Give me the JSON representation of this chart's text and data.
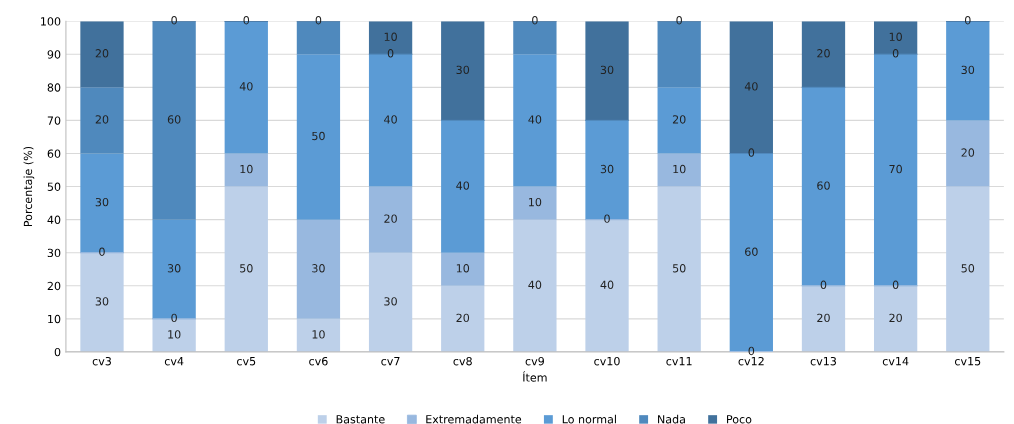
{
  "chart_data": {
    "type": "bar",
    "stacked": true,
    "xlabel": "Ítem",
    "ylabel": "Porcentaje (%)",
    "categories": [
      "cv3",
      "cv4",
      "cv5",
      "cv6",
      "cv7",
      "cv8",
      "cv9",
      "cv10",
      "cv11",
      "cv12",
      "cv13",
      "cv14",
      "cv15"
    ],
    "series": [
      {
        "name": "Bastante",
        "color": "#bdd0e9",
        "values": [
          30,
          10,
          50,
          10,
          30,
          20,
          40,
          40,
          50,
          0,
          20,
          20,
          50
        ],
        "value_labels": [
          "30",
          "10",
          "50",
          "10",
          "30",
          "20",
          "40",
          "40",
          "50",
          "0",
          "20",
          "20",
          "50"
        ]
      },
      {
        "name": "Extremadamente",
        "color": "#98b8df",
        "values": [
          0,
          0,
          10,
          30,
          20,
          10,
          10,
          0,
          10,
          0,
          0,
          0,
          20
        ],
        "value_labels": [
          "0",
          "0",
          "10",
          "30",
          "20",
          "10",
          "10",
          "0",
          "10",
          null,
          "0",
          "0",
          "20"
        ]
      },
      {
        "name": "Lo normal",
        "color": "#5b9bd5",
        "values": [
          30,
          30,
          40,
          50,
          40,
          40,
          40,
          30,
          20,
          60,
          60,
          70,
          30
        ],
        "value_labels": [
          "30",
          "30",
          "40",
          "50",
          "40",
          "40",
          "40",
          "30",
          "20",
          "60",
          "60",
          "70",
          "30"
        ]
      },
      {
        "name": "Nada",
        "color": "#4f89bd",
        "values": [
          20,
          60,
          0,
          10,
          0,
          0,
          10,
          0,
          20,
          0,
          0,
          0,
          0
        ],
        "value_labels": [
          "20",
          "60",
          null,
          null,
          "0",
          null,
          null,
          null,
          null,
          "0",
          null,
          "0",
          null
        ]
      },
      {
        "name": "Poco",
        "color": "#41719c",
        "values": [
          20,
          0,
          0,
          0,
          10,
          30,
          0,
          30,
          0,
          40,
          20,
          10,
          0
        ],
        "value_labels": [
          "20",
          "0",
          "0",
          "0",
          "10",
          "30",
          "0",
          "30",
          "0",
          "40",
          "20",
          "10",
          "0"
        ]
      }
    ],
    "ylim": [
      0,
      100
    ],
    "yticks": [
      0,
      10,
      20,
      30,
      40,
      50,
      60,
      70,
      80,
      90,
      100
    ],
    "grid": "y",
    "legend": "bottom"
  }
}
